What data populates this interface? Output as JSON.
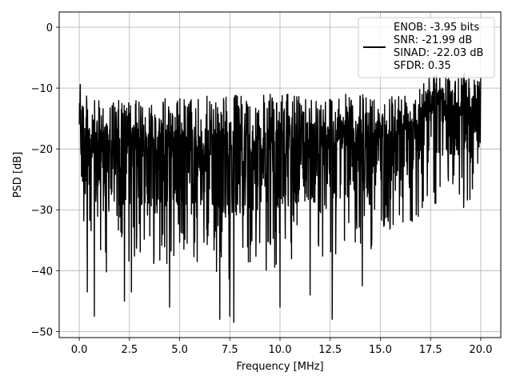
{
  "chart_data": {
    "type": "line",
    "title": "",
    "xlabel": "Frequency [MHz]",
    "ylabel": "PSD [dB]",
    "xlim": [
      -1.0,
      21.0
    ],
    "ylim": [
      -51.0,
      2.5
    ],
    "xticks": [
      0.0,
      2.5,
      5.0,
      7.5,
      10.0,
      12.5,
      15.0,
      17.5,
      20.0
    ],
    "xtick_labels": [
      "0.0",
      "2.5",
      "5.0",
      "7.5",
      "10.0",
      "12.5",
      "15.0",
      "17.5",
      "20.0"
    ],
    "yticks": [
      0,
      -10,
      -20,
      -30,
      -40,
      -50
    ],
    "ytick_labels": [
      "0",
      "−10",
      "−20",
      "−30",
      "−40",
      "−50"
    ],
    "grid": true,
    "legend_position": "top-right",
    "legend_lines": [
      "ENOB: -3.95 bits",
      "SNR: -21.99 dB",
      "SINAD: -22.03 dB",
      "SFDR: 0.35"
    ],
    "series": [
      {
        "color": "#000000",
        "x_range": [
          0.0,
          20.0
        ],
        "envelope": {
          "x": [
            0.0,
            0.05,
            0.1,
            0.2,
            0.5,
            1.0,
            2.0,
            3.0,
            4.0,
            5.0,
            6.0,
            7.0,
            8.0,
            9.0,
            10.0,
            11.0,
            12.0,
            13.0,
            14.0,
            15.0,
            16.0,
            16.8,
            17.0,
            17.5,
            18.0,
            19.0,
            19.5,
            20.0
          ],
          "upper": [
            -16,
            -4.5,
            -9,
            -10,
            -12,
            -12,
            -12,
            -12,
            -11.5,
            -11.5,
            -11.5,
            -11,
            -11,
            -11,
            -11,
            -11,
            -11,
            -11,
            -11,
            -11,
            -10.5,
            -10,
            -8,
            -7.5,
            -7.5,
            -7.5,
            -7.5,
            -8
          ],
          "lower": [
            -21,
            -28,
            -35,
            -38,
            -40,
            -41,
            -40,
            -39,
            -39,
            -39,
            -40,
            -41,
            -42,
            -40,
            -40,
            -39,
            -39,
            -38,
            -37,
            -36,
            -34,
            -32,
            -30,
            -29,
            -29,
            -30,
            -31,
            -27
          ]
        },
        "deep_dips": [
          {
            "x": 0.4,
            "y": -43.5
          },
          {
            "x": 0.75,
            "y": -47.5
          },
          {
            "x": 2.25,
            "y": -45.0
          },
          {
            "x": 2.6,
            "y": -43.5
          },
          {
            "x": 4.5,
            "y": -46.0
          },
          {
            "x": 7.0,
            "y": -48.0
          },
          {
            "x": 7.5,
            "y": -47.5
          },
          {
            "x": 7.7,
            "y": -48.5
          },
          {
            "x": 10.0,
            "y": -46.0
          },
          {
            "x": 12.6,
            "y": -48.0
          },
          {
            "x": 11.5,
            "y": -44.0
          },
          {
            "x": 14.1,
            "y": -42.5
          }
        ],
        "n_points": 1600
      }
    ]
  }
}
